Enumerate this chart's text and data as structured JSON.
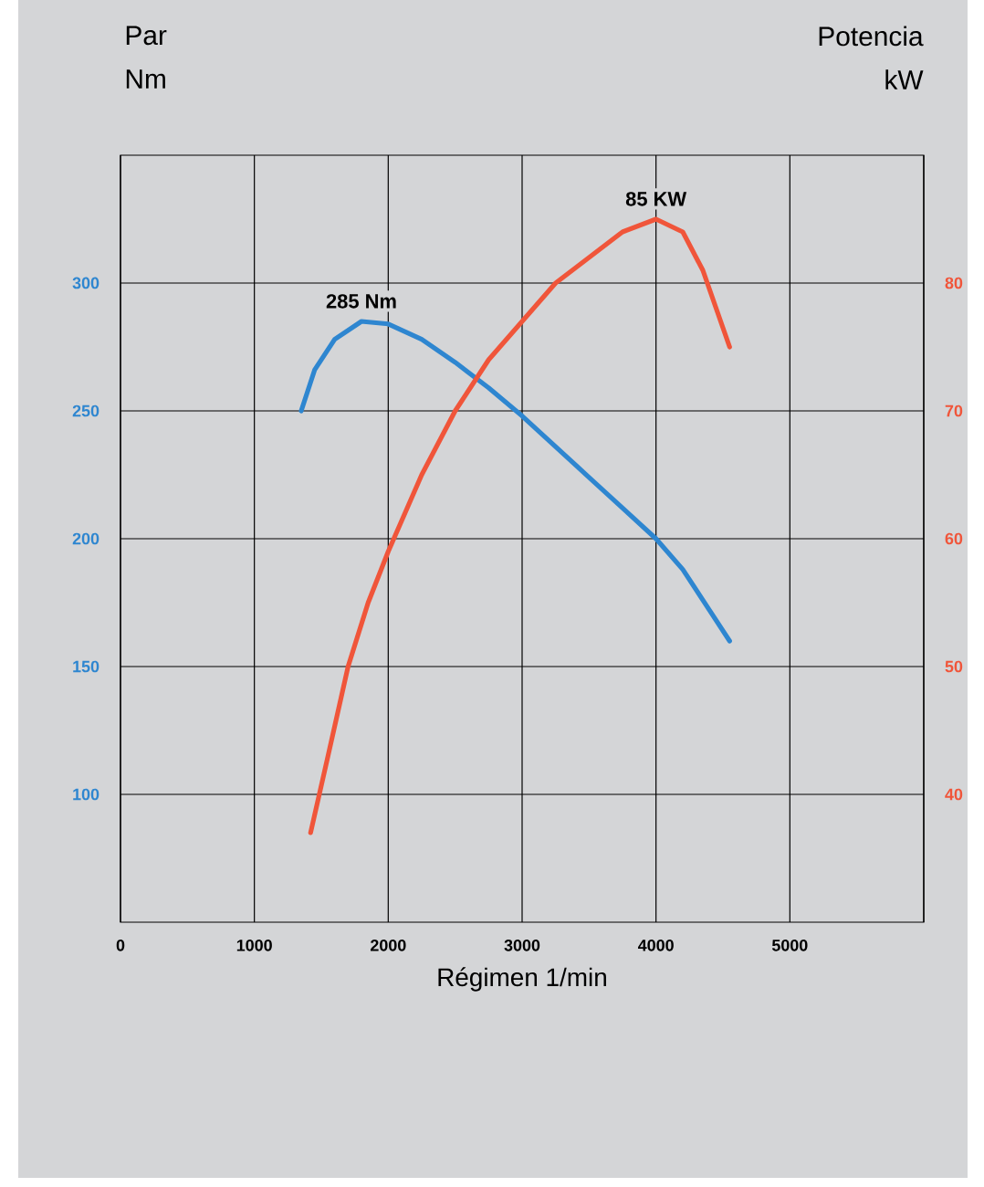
{
  "chart_data": {
    "type": "line",
    "xlabel": "Régimen 1/min",
    "ylabel": "Par Nm",
    "y2label": "Potencia kW",
    "xlim": [
      0,
      6000
    ],
    "xticks": [
      0,
      1000,
      2000,
      3000,
      4000,
      5000
    ],
    "ylim": [
      50,
      350
    ],
    "yticks": [
      100,
      150,
      200,
      250,
      300
    ],
    "y2lim": [
      30,
      90
    ],
    "y2ticks": [
      40,
      50,
      60,
      70,
      80
    ],
    "grid": true,
    "annotations": [
      "285 Nm",
      "85 KW"
    ],
    "series": [
      {
        "color": "#2e86d0",
        "x": [
          1350,
          1450,
          1600,
          1800,
          2000,
          2250,
          2500,
          2750,
          3000,
          3250,
          3500,
          3750,
          4000,
          4200,
          4400,
          4550
        ],
        "values": [
          250,
          266,
          278,
          285,
          284,
          278,
          269,
          259,
          248,
          236,
          224,
          212,
          200,
          188,
          172,
          160
        ]
      },
      {
        "color": "#f0553a",
        "axis": "y2",
        "x": [
          1420,
          1550,
          1700,
          1850,
          2000,
          2250,
          2500,
          2750,
          3000,
          3250,
          3500,
          3750,
          4000,
          4200,
          4350,
          4450,
          4550
        ],
        "values": [
          37,
          43,
          50,
          55,
          59,
          65,
          70,
          74,
          77,
          80,
          82,
          84,
          85,
          84,
          81,
          78,
          75
        ]
      }
    ]
  }
}
